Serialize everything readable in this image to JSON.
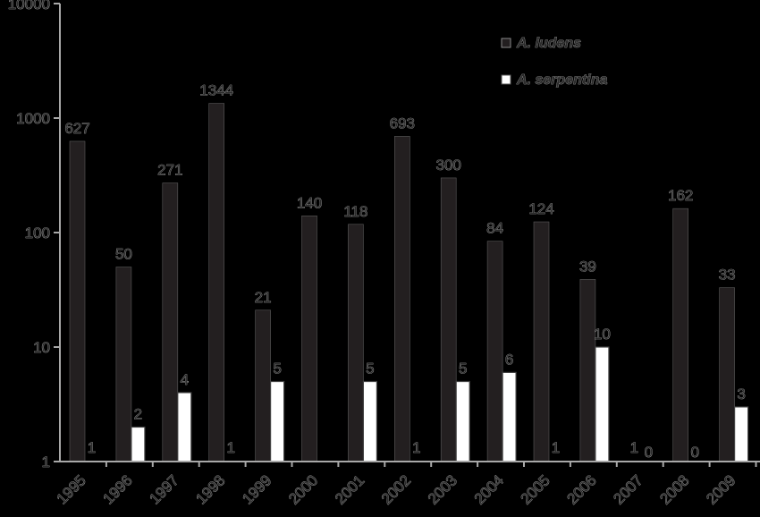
{
  "chart_data": {
    "type": "bar",
    "title": "",
    "xlabel": "",
    "ylabel": "",
    "yscale": "log",
    "ylim": [
      1,
      10000
    ],
    "yticks": [
      "1",
      "10",
      "100",
      "1000",
      "10000"
    ],
    "grid": false,
    "legend_position": "top-right",
    "categories": [
      "1995",
      "1996",
      "1997",
      "1998",
      "1999",
      "2000",
      "2001",
      "2002",
      "2003",
      "2004",
      "2005",
      "2006",
      "2007",
      "2008",
      "2009"
    ],
    "series": [
      {
        "name": "A. ludens",
        "color": "#231f20",
        "values": [
          627,
          50,
          271,
          1344,
          21,
          140,
          118,
          693,
          300,
          84,
          124,
          39,
          1,
          162,
          33
        ],
        "labels": [
          "627",
          "50",
          "271",
          "1344",
          "21",
          "140",
          "118",
          "693",
          "300",
          "84",
          "124",
          "39",
          "1",
          "162",
          "33"
        ]
      },
      {
        "name": "A. serpentina",
        "color": "#ffffff",
        "values": [
          1,
          2,
          4,
          1,
          5,
          0,
          5,
          1,
          5,
          6,
          1,
          10,
          0,
          0,
          3
        ],
        "labels": [
          "1",
          "2",
          "4",
          "1",
          "5",
          "",
          "5",
          "1",
          "5",
          "6",
          "1",
          "10",
          "0",
          "0",
          "3"
        ]
      }
    ]
  }
}
